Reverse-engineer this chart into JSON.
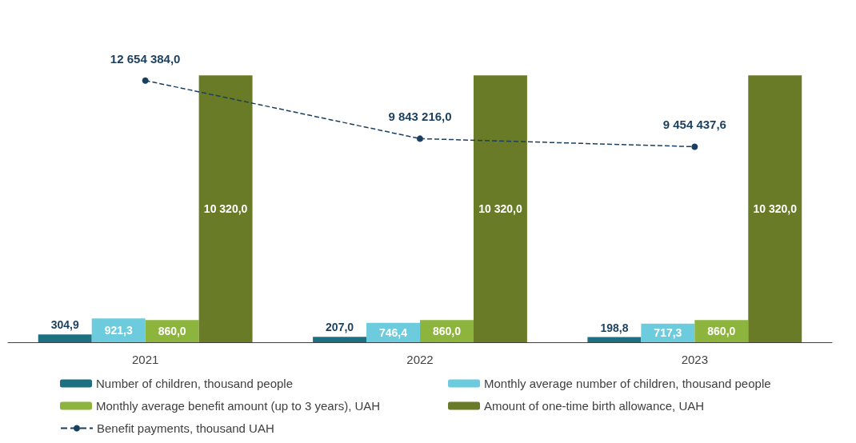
{
  "chart_data": {
    "type": "bar",
    "categories": [
      "2021",
      "2022",
      "2023"
    ],
    "series": [
      {
        "name": "Number of children, thousand people",
        "color": "#1d6f82",
        "values": [
          304.9,
          207.0,
          198.8
        ],
        "value_labels": [
          "304,9",
          "207,0",
          "198,8"
        ]
      },
      {
        "name": "Monthly average number of children, thousand people",
        "color": "#6ccbdd",
        "values": [
          921.3,
          746.4,
          717.3
        ],
        "value_labels": [
          "921,3",
          "746,4",
          "717,3"
        ]
      },
      {
        "name": "Monthly average benefit amount (up to 3 years), UAH",
        "color": "#8db43c",
        "values": [
          860.0,
          860.0,
          860.0
        ],
        "value_labels": [
          "860,0",
          "860,0",
          "860,0"
        ]
      },
      {
        "name": "Amount of one-time birth allowance, UAH",
        "color": "#6a7b27",
        "values": [
          10320.0,
          10320.0,
          10320.0
        ],
        "value_labels": [
          "10 320,0",
          "10 320,0",
          "10 320,0"
        ]
      },
      {
        "name": "Benefit payments, thousand UAH",
        "type": "line",
        "axis": "y2",
        "color": "#1b3f5f",
        "values": [
          12654384.0,
          9843216.0,
          9454437.6
        ],
        "value_labels": [
          "12 654 384,0",
          "9 843 216,0",
          "9 454 437,6"
        ]
      }
    ],
    "grid": false,
    "legend": "bottom",
    "marker": "circle",
    "line_style": "dashed"
  }
}
